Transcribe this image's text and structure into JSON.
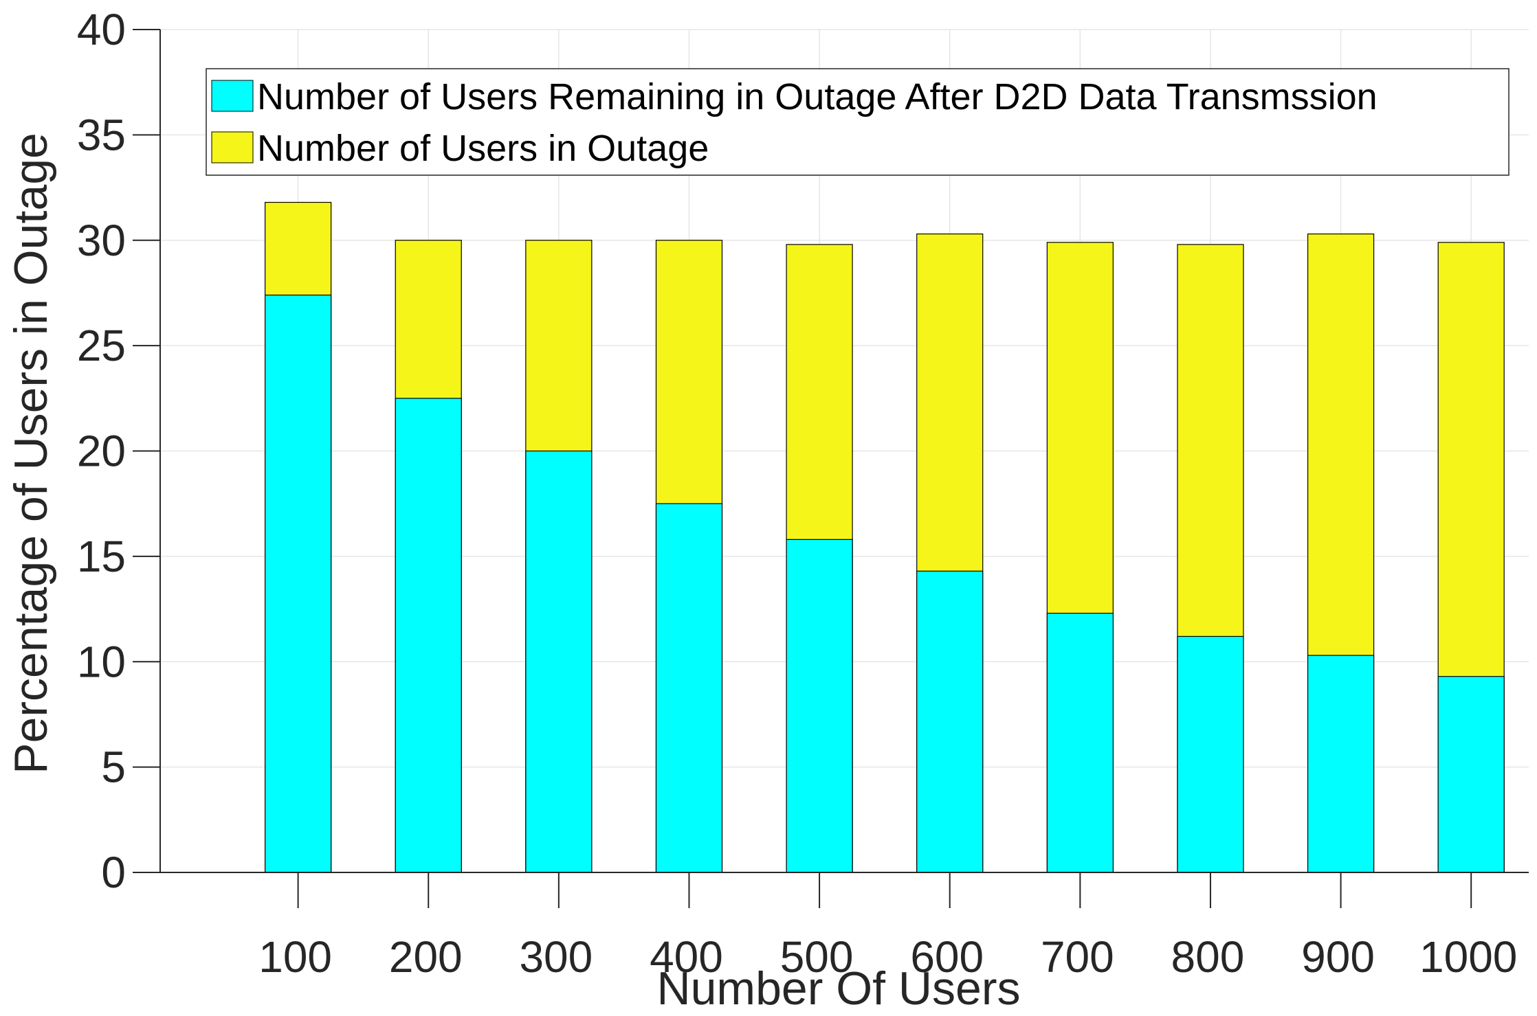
{
  "chart_data": {
    "type": "bar",
    "stacked": false,
    "overlaid": true,
    "title": "",
    "xlabel": "Number Of Users",
    "ylabel": "Percentage of Users in Outage",
    "categories": [
      "100",
      "200",
      "300",
      "400",
      "500",
      "600",
      "700",
      "800",
      "900",
      "1000"
    ],
    "ylim": [
      0,
      40
    ],
    "yticks": [
      "0",
      "5",
      "10",
      "15",
      "20",
      "25",
      "30",
      "35",
      "40"
    ],
    "grid": true,
    "legend_position": "top",
    "series": [
      {
        "name": "Number of Users in Outage",
        "color": "#f5f519",
        "values": [
          31.8,
          30.0,
          30.0,
          30.0,
          29.8,
          30.3,
          29.9,
          29.8,
          30.3,
          29.9
        ]
      },
      {
        "name": "Number of Users Remaining in Outage After D2D Data Transmssion",
        "color": "#00ffff",
        "values": [
          27.4,
          22.5,
          20.0,
          17.5,
          15.8,
          14.3,
          12.3,
          11.2,
          10.3,
          9.3
        ]
      }
    ],
    "legend_order": [
      1,
      0
    ]
  },
  "colors": {
    "axis": "#262626",
    "grid": "#e6e6e6",
    "bar_edge": "#000000"
  }
}
